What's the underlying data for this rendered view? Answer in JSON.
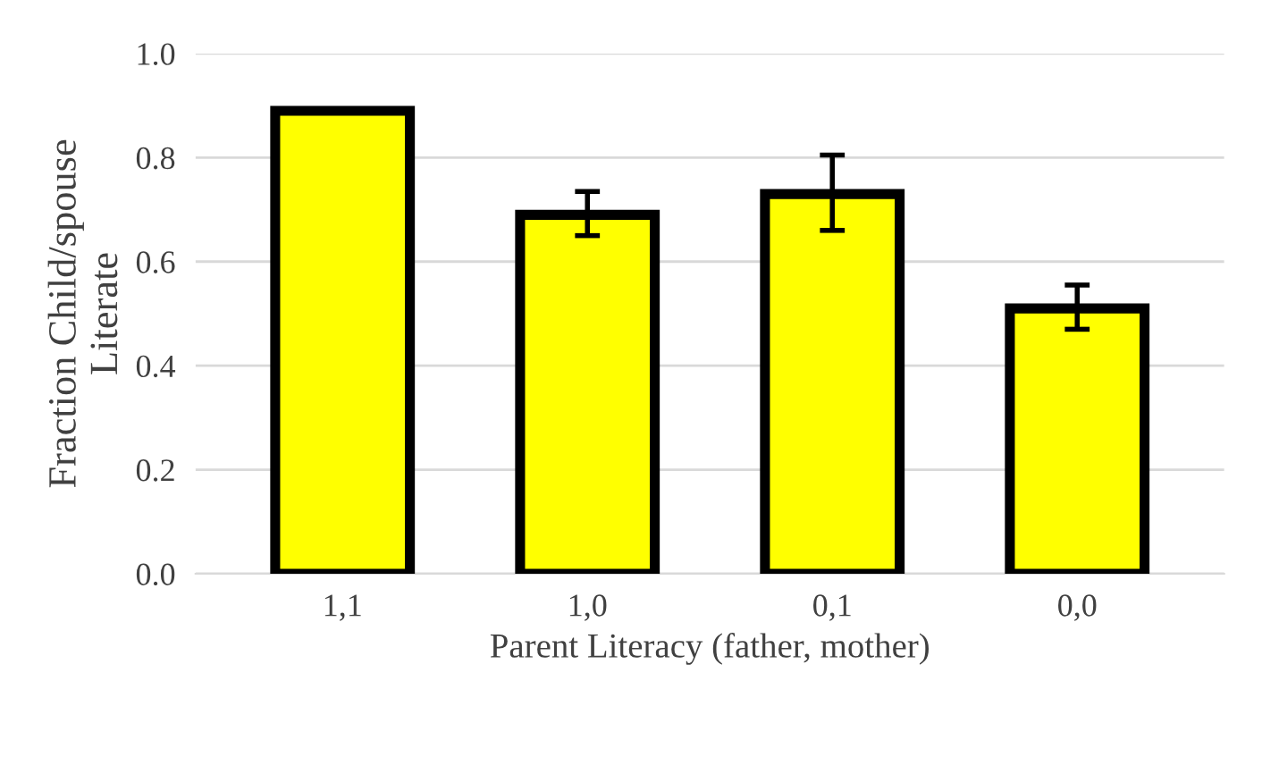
{
  "chart_data": {
    "type": "bar",
    "xlabel": "Parent Literacy (father, mother)",
    "ylabel": "Fraction Child/spouse\nLiterate",
    "categories": [
      "1,1",
      "1,0",
      "0,1",
      "0,0"
    ],
    "values": [
      0.89,
      0.69,
      0.73,
      0.51
    ],
    "errors": [
      null,
      [
        0.65,
        0.735
      ],
      [
        0.66,
        0.805
      ],
      [
        0.47,
        0.555
      ]
    ],
    "color": "#ffff00",
    "ylim": [
      0,
      1.0
    ],
    "yticks": [
      {
        "value": 0,
        "label": "0.0"
      },
      {
        "value": 0.2,
        "label": "0.2"
      },
      {
        "value": 0.4,
        "label": "0.4"
      },
      {
        "value": 0.6,
        "label": "0.6"
      },
      {
        "value": 0.8,
        "label": "0.8"
      },
      {
        "value": 1.0,
        "label": "1.0"
      }
    ],
    "grid": "y"
  }
}
